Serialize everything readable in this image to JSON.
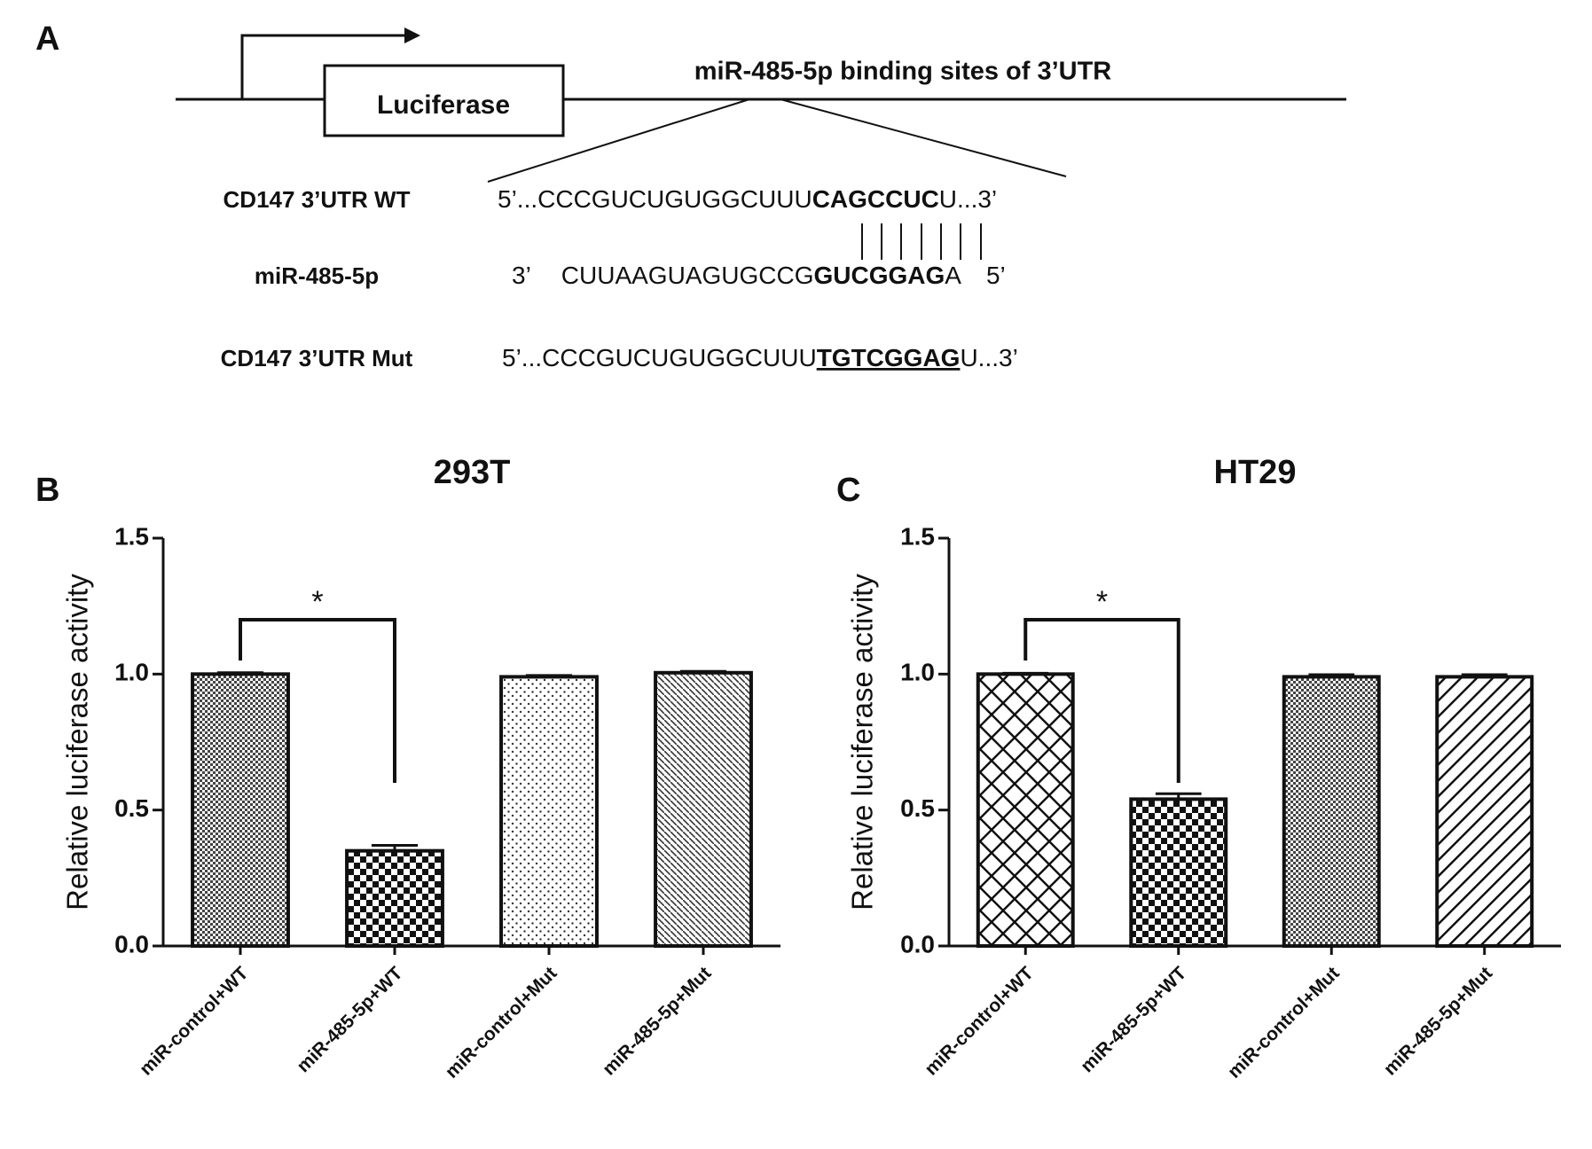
{
  "diagram": {
    "panel_label": "A",
    "gene_box": "Luciferase",
    "site_label": "miR-485-5p binding sites of 3’UTR",
    "rows": [
      {
        "label": "CD147 3’UTR WT",
        "parts": [
          "5’...CCCGUCUGUGGCUUU",
          "CAGCCUC",
          "U...3’"
        ]
      },
      {
        "label": "miR-485-5p",
        "parts": [
          "3’",
          "CUUAAGUAGUGCCG",
          "GUCGGAG",
          "A",
          "5’"
        ]
      },
      {
        "label": "CD147 3’UTR Mut",
        "parts": [
          "5’...CCCGUCUGUGGCUUU",
          "TGTCGGAG",
          "U...3’"
        ]
      }
    ]
  },
  "chart_data": [
    {
      "type": "bar",
      "panel_label": "B",
      "title": "293T",
      "y_label": "Relative luciferase activity",
      "categories": [
        "miR-control+WT",
        "miR-485-5p+WT",
        "miR-control+Mut",
        "miR-485-5p+Mut"
      ],
      "values": [
        1.0,
        0.35,
        0.99,
        1.005
      ],
      "errors": [
        0.005,
        0.02,
        0.005,
        0.005
      ],
      "bar_patterns": [
        "dense",
        "checker",
        "dots",
        "diagonal-back"
      ],
      "ylim": [
        0,
        1.5
      ],
      "yticks": [
        {
          "value": 0,
          "label": "0.0"
        },
        0.5,
        {
          "value": 1,
          "label": "1.0"
        },
        1.5
      ],
      "annotation": "*"
    },
    {
      "type": "bar",
      "panel_label": "C",
      "title": "HT29",
      "y_label": "Relative luciferase activity",
      "categories": [
        "miR-control+WT",
        "miR-485-5p+WT",
        "miR-control+Mut",
        "miR-485-5p+Mut"
      ],
      "values": [
        1.0,
        0.54,
        0.99,
        0.99
      ],
      "errors": [
        0.003,
        0.02,
        0.008,
        0.008
      ],
      "bar_patterns": [
        "crosshatch",
        "checker",
        "dense",
        "diagonal"
      ],
      "ylim": [
        0,
        1.5
      ],
      "yticks": [
        {
          "value": 0,
          "label": "0.0"
        },
        0.5,
        {
          "value": 1,
          "label": "1.0"
        },
        1.5
      ],
      "annotation": "*"
    }
  ]
}
